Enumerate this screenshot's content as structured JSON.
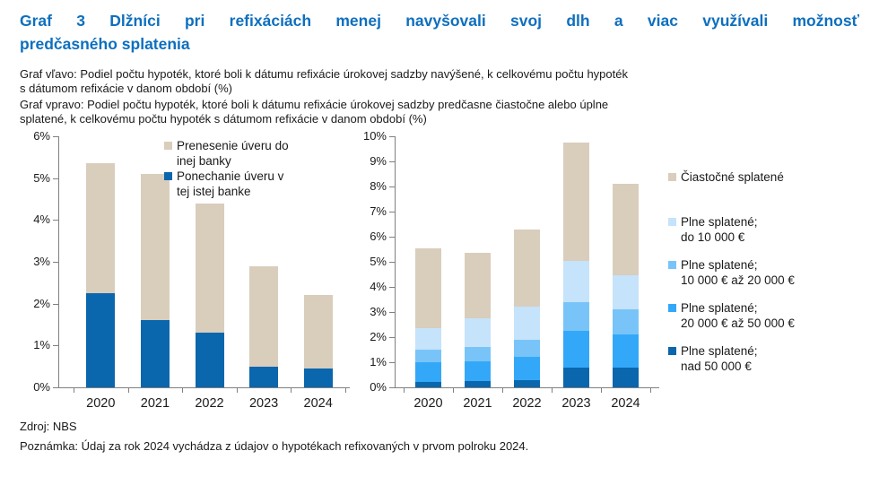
{
  "title": {
    "line1": "Graf 3 Dlžníci pri refixáciách menej navyšovali svoj dlh a viac využívali možnosť",
    "line2": "predčasného splatenia"
  },
  "description": {
    "left_graph_line1": "Graf vľavo: Podiel počtu hypoték, ktoré boli k dátumu refixácie úrokovej sadzby navýšené, k celkovému počtu hypoték",
    "left_graph_line2": "s dátumom refixácie v danom období (%)",
    "right_graph_line1": "Graf vpravo: Podiel počtu hypoték, ktoré boli k dátumu refixácie úrokovej sadzby predčasne čiastočne alebo úplne",
    "right_graph_line2": "splatené, k celkovému počtu hypoték s dátumom refixácie v danom období (%)"
  },
  "footer": {
    "source": "Zdroj: NBS",
    "note": "Poznámka: Údaj za rok 2024 vychádza z údajov o hypotékach refixovaných v prvom polroku 2024."
  },
  "colors": {
    "title_blue": "#0e6fbe",
    "axis_gray": "#808080",
    "beige": "#d9cdbc",
    "dark_blue": "#0a66ad",
    "bright_blue": "#34a8f8",
    "mid_blue": "#78c4f8",
    "pale_blue": "#c5e3fa"
  },
  "chart_data": [
    {
      "id": "left",
      "type": "bar",
      "stacked": true,
      "categories": [
        "2020",
        "2021",
        "2022",
        "2023",
        "2024"
      ],
      "series": [
        {
          "name": "Ponechanie úveru v tej istej banke",
          "color_key": "dark_blue",
          "values": [
            2.25,
            1.6,
            1.3,
            0.5,
            0.45
          ]
        },
        {
          "name": "Prenesenie úveru do inej banky",
          "color_key": "beige",
          "values": [
            3.1,
            3.5,
            3.1,
            2.4,
            1.75
          ]
        }
      ],
      "totals": [
        5.35,
        5.1,
        4.4,
        2.9,
        2.2
      ],
      "ylim": [
        0,
        6
      ],
      "ytick_step": 1,
      "ytick_labels": [
        "0%",
        "1%",
        "2%",
        "3%",
        "4%",
        "5%",
        "6%"
      ],
      "grid": false,
      "legend_position": "inside-top-right",
      "legend": [
        {
          "label": "Prenesenie úveru do inej banky",
          "lines": [
            "Prenesenie úveru do",
            "inej banky"
          ],
          "color_key": "beige"
        },
        {
          "label": "Ponechanie úveru v tej istej banke",
          "lines": [
            "Ponechanie úveru v",
            "tej istej banke"
          ],
          "color_key": "dark_blue"
        }
      ]
    },
    {
      "id": "right",
      "type": "bar",
      "stacked": true,
      "categories": [
        "2020",
        "2021",
        "2022",
        "2023",
        "2024"
      ],
      "series": [
        {
          "name": "Plne splatené; nad 50 000 €",
          "color_key": "dark_blue",
          "values": [
            0.2,
            0.25,
            0.3,
            0.8,
            0.8
          ]
        },
        {
          "name": "Plne splatené; 20 000 € až 50 000 €",
          "color_key": "bright_blue",
          "values": [
            0.8,
            0.8,
            0.9,
            1.45,
            1.3
          ]
        },
        {
          "name": "Plne splatené; 10 000 € až 20 000 €",
          "color_key": "mid_blue",
          "values": [
            0.5,
            0.55,
            0.7,
            1.15,
            1.0
          ]
        },
        {
          "name": "Plne splatené; do 10 000 €",
          "color_key": "pale_blue",
          "values": [
            0.85,
            1.15,
            1.3,
            1.65,
            1.35
          ]
        },
        {
          "name": "Čiastočné splatené",
          "color_key": "beige",
          "values": [
            3.2,
            2.6,
            3.1,
            4.7,
            3.65
          ]
        }
      ],
      "totals": [
        5.55,
        5.35,
        6.3,
        9.75,
        8.1
      ],
      "ylim": [
        0,
        10
      ],
      "ytick_step": 1,
      "ytick_labels": [
        "0%",
        "1%",
        "2%",
        "3%",
        "4%",
        "5%",
        "6%",
        "7%",
        "8%",
        "9%",
        "10%"
      ],
      "grid": false,
      "legend_position": "right",
      "legend": [
        {
          "label": "Čiastočné splatené",
          "lines": [
            "Čiastočné splatené"
          ],
          "color_key": "beige"
        },
        {
          "label": "Plne splatené; do 10 000 €",
          "lines": [
            "Plne splatené;",
            "do 10 000 €"
          ],
          "color_key": "pale_blue"
        },
        {
          "label": "Plne splatené; 10 000 € až 20 000 €",
          "lines": [
            "Plne splatené;",
            "10 000 € až 20 000 €"
          ],
          "color_key": "mid_blue"
        },
        {
          "label": "Plne splatené; 20 000 € až 50 000 €",
          "lines": [
            "Plne splatené;",
            "20 000 € až 50 000 €"
          ],
          "color_key": "bright_blue"
        },
        {
          "label": "Plne splatené; nad 50 000 €",
          "lines": [
            "Plne splatené;",
            "nad 50 000 €"
          ],
          "color_key": "dark_blue"
        }
      ]
    }
  ]
}
